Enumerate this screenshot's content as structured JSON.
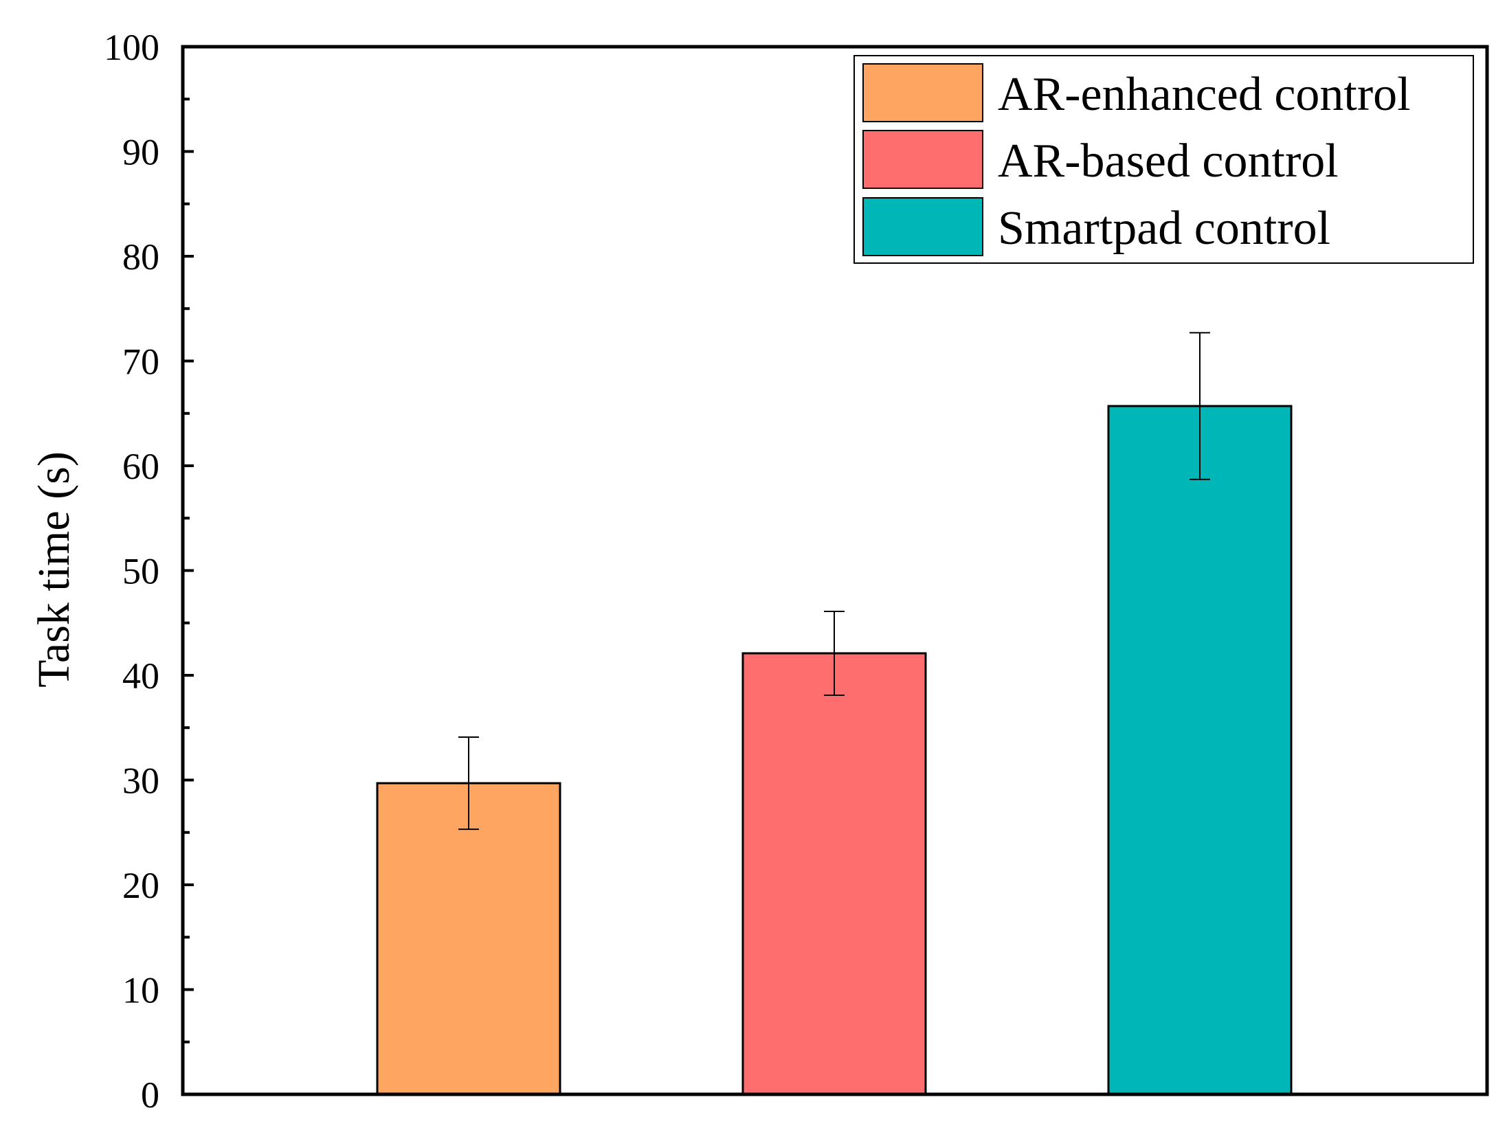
{
  "chart_data": {
    "type": "bar",
    "title": "",
    "xlabel": "",
    "ylabel": "Task time (s)",
    "ylim": [
      0,
      100
    ],
    "yticks": [
      "0",
      "10",
      "20",
      "30",
      "40",
      "50",
      "60",
      "70",
      "80",
      "90",
      "100"
    ],
    "categories": [
      "AR-enhanced control",
      "AR-based control",
      "Smartpad control"
    ],
    "values": [
      29.7,
      42.1,
      65.7
    ],
    "errors": [
      4.4,
      4.0,
      7.0
    ],
    "colors": [
      "#FFA562",
      "#FF6E6E",
      "#00B6B6"
    ],
    "legend": {
      "position": "top-right",
      "entries": [
        {
          "label": "AR-enhanced control",
          "color": "#FFA562"
        },
        {
          "label": "AR-based control",
          "color": "#FF6E6E"
        },
        {
          "label": "Smartpad control",
          "color": "#00B6B6"
        }
      ]
    },
    "grid": false
  }
}
